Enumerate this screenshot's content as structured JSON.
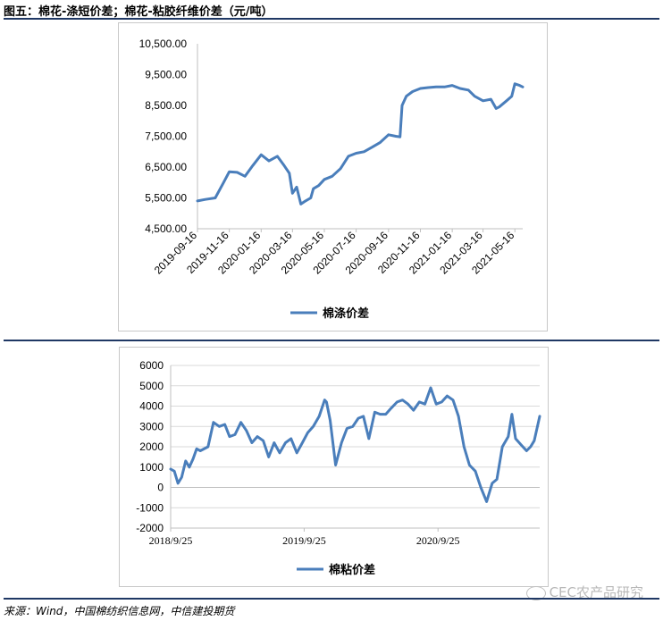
{
  "figure_title": "图五：棉花-涤短价差；棉花-粘胶纤维价差（元/吨）",
  "source": "来源：Wind，中国棉纺织信息网，中信建投期货",
  "watermark": "CEC农产品研究",
  "colors": {
    "line": "#4a7ebb",
    "grid": "#d9d9d9",
    "rule": "#1f3864"
  },
  "chart_data": [
    {
      "type": "line",
      "series": [
        {
          "name": "棉涤价差",
          "x": [
            "2019-09-16",
            "2019-10-01",
            "2019-10-20",
            "2019-11-05",
            "2019-11-16",
            "2019-12-01",
            "2019-12-16",
            "2019-12-31",
            "2020-01-16",
            "2020-01-31",
            "2020-02-16",
            "2020-02-29",
            "2020-03-10",
            "2020-03-16",
            "2020-03-24",
            "2020-04-01",
            "2020-04-10",
            "2020-04-20",
            "2020-04-25",
            "2020-05-05",
            "2020-05-16",
            "2020-05-31",
            "2020-06-16",
            "2020-07-01",
            "2020-07-16",
            "2020-07-31",
            "2020-08-16",
            "2020-08-31",
            "2020-09-16",
            "2020-09-30",
            "2020-10-08",
            "2020-10-12",
            "2020-10-20",
            "2020-11-01",
            "2020-11-16",
            "2020-12-01",
            "2020-12-16",
            "2021-01-01",
            "2021-01-16",
            "2021-01-31",
            "2021-02-16",
            "2021-02-28",
            "2021-03-16",
            "2021-03-31",
            "2021-04-10",
            "2021-04-16",
            "2021-04-30",
            "2021-05-10",
            "2021-05-16",
            "2021-05-25",
            "2021-05-31"
          ],
          "values": [
            5400,
            5450,
            5500,
            6000,
            6350,
            6330,
            6200,
            6550,
            6900,
            6700,
            6850,
            6550,
            6300,
            5650,
            5850,
            5300,
            5400,
            5500,
            5800,
            5900,
            6100,
            6200,
            6450,
            6850,
            6950,
            7000,
            7150,
            7300,
            7550,
            7500,
            7480,
            8500,
            8800,
            8950,
            9050,
            9080,
            9100,
            9100,
            9150,
            9050,
            9000,
            8800,
            8650,
            8700,
            8400,
            8450,
            8650,
            8800,
            9200,
            9150,
            9100
          ]
        }
      ],
      "x_ticks": [
        "2019-09-16",
        "2019-11-16",
        "2020-01-16",
        "2020-03-16",
        "2020-05-16",
        "2020-07-16",
        "2020-09-16",
        "2020-11-16",
        "2021-01-16",
        "2021-03-16",
        "2021-05-16"
      ],
      "y_ticks": [
        "4,500.00",
        "5,500.00",
        "6,500.00",
        "7,500.00",
        "8,500.00",
        "9,500.00",
        "10,500.00"
      ],
      "ylim": [
        4500,
        10500
      ],
      "legend": "bottom",
      "grid": false
    },
    {
      "type": "line",
      "series": [
        {
          "name": "棉粘价差",
          "x": [
            "2018-09-25",
            "2018-10-05",
            "2018-10-15",
            "2018-10-25",
            "2018-11-05",
            "2018-11-15",
            "2018-11-25",
            "2018-12-05",
            "2018-12-15",
            "2019-01-05",
            "2019-01-20",
            "2019-02-05",
            "2019-02-20",
            "2019-03-05",
            "2019-03-20",
            "2019-04-05",
            "2019-04-20",
            "2019-05-05",
            "2019-05-20",
            "2019-06-05",
            "2019-06-20",
            "2019-07-05",
            "2019-07-20",
            "2019-08-05",
            "2019-08-20",
            "2019-09-05",
            "2019-09-20",
            "2019-10-05",
            "2019-10-20",
            "2019-11-05",
            "2019-11-20",
            "2019-11-25",
            "2019-12-05",
            "2019-12-20",
            "2020-01-05",
            "2020-01-20",
            "2020-02-05",
            "2020-02-20",
            "2020-03-05",
            "2020-03-20",
            "2020-04-05",
            "2020-04-20",
            "2020-05-05",
            "2020-05-20",
            "2020-06-05",
            "2020-06-20",
            "2020-07-05",
            "2020-07-20",
            "2020-08-05",
            "2020-08-20",
            "2020-09-05",
            "2020-09-20",
            "2020-10-05",
            "2020-10-20",
            "2020-11-05",
            "2020-11-20",
            "2020-12-05",
            "2020-12-20",
            "2021-01-05",
            "2021-01-20",
            "2021-02-05",
            "2021-02-20",
            "2021-03-05",
            "2021-03-20",
            "2021-04-05",
            "2021-04-15",
            "2021-04-25",
            "2021-05-10",
            "2021-05-25",
            "2021-06-05",
            "2021-06-15",
            "2021-06-30"
          ],
          "values": [
            900,
            800,
            200,
            500,
            1300,
            1000,
            1400,
            1900,
            1800,
            2000,
            3200,
            3000,
            3100,
            2500,
            2600,
            3200,
            2800,
            2200,
            2500,
            2300,
            1500,
            2200,
            1700,
            2200,
            2400,
            1700,
            2200,
            2700,
            3000,
            3500,
            4300,
            4200,
            3300,
            1100,
            2200,
            2900,
            3000,
            3400,
            3500,
            2400,
            3700,
            3600,
            3600,
            3900,
            4200,
            4300,
            4100,
            3800,
            4200,
            4100,
            4900,
            4100,
            4200,
            4500,
            4300,
            3500,
            2000,
            1100,
            800,
            0,
            -700,
            200,
            400,
            2000,
            2500,
            3600,
            2400,
            2100,
            1800,
            2000,
            2300,
            3500
          ]
        }
      ],
      "x_ticks": [
        "2018/9/25",
        "2019/9/25",
        "2020/9/25"
      ],
      "y_ticks": [
        "-2000",
        "-1000",
        "0",
        "1000",
        "2000",
        "3000",
        "4000",
        "5000",
        "6000"
      ],
      "ylim": [
        -2000,
        6000
      ],
      "legend": "bottom",
      "grid": true
    }
  ]
}
